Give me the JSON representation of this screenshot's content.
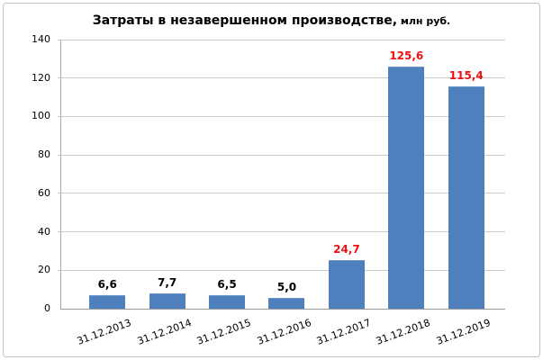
{
  "title": {
    "main": "Затраты в незавершенном производстве,",
    "unit": " млн руб."
  },
  "chart_data": {
    "type": "bar",
    "title": "Затраты в незавершенном производстве, млн руб.",
    "categories": [
      "31.12.2013",
      "31.12.2014",
      "31.12.2015",
      "31.12.2016",
      "31.12.2017",
      "31.12.2018",
      "31.12.2019"
    ],
    "values": [
      6.6,
      7.7,
      6.5,
      5.0,
      24.7,
      125.6,
      115.4
    ],
    "value_labels": [
      "6,6",
      "7,7",
      "6,5",
      "5,0",
      "24,7",
      "125,6",
      "115,4"
    ],
    "label_colors": [
      "#000000",
      "#000000",
      "#000000",
      "#000000",
      "#ee1111",
      "#ee1111",
      "#ee1111"
    ],
    "xlabel": "",
    "ylabel": "",
    "ylim": [
      0,
      140
    ],
    "yticks": [
      0,
      20,
      40,
      60,
      80,
      100,
      120,
      140
    ],
    "grid": true,
    "legend": "none",
    "bar_color": "#4d80bc",
    "gridline_color": "#c9c9c9",
    "axis_color": "#9a9a9a"
  }
}
